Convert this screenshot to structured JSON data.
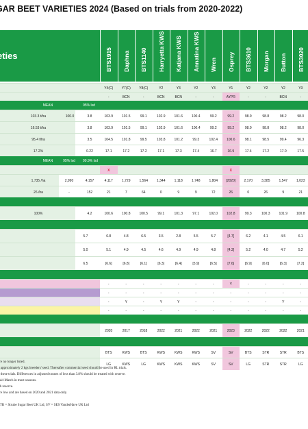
{
  "title": "GAR BEET VARIETIES 2024 (Based on trials from 2020-2022)",
  "subtitle": "eties",
  "varieties": [
    "BTS1915",
    "Daphna",
    "BTS1140",
    "Harryetta KWS",
    "Katjana KWS",
    "Annatina KWS",
    "Wren",
    "Osprey",
    "BTS3610",
    "Morgan",
    "Button",
    "BTS3020"
  ],
  "rows": {
    "status": [
      "Y4(C)",
      "Y7(C)",
      "Y8(C)",
      "Y2",
      "Y3",
      "Y2",
      "Y3",
      "Y1",
      "Y2",
      "Y2",
      "Y2",
      "Y3"
    ],
    "bcn": [
      "-",
      "BCN",
      "-",
      "BCN",
      "BCN",
      "-",
      "-",
      "AYPR",
      "-",
      "-",
      "BCN",
      "-"
    ],
    "mean_header": {
      "mean": "MEAN",
      "lsd": "95% lsd"
    },
    "yield1": {
      "label": "103.3 t/ha",
      "mean": "100.0",
      "lsd": "3.8",
      "values": [
        "103.9",
        "101.5",
        "99.1",
        "102.9",
        "101.6",
        "100.4",
        "99.2",
        "99.2",
        "98.9",
        "98.8",
        "98.2",
        "98.0"
      ]
    },
    "yield2": {
      "label": "16.53 t/ha",
      "lsd": "3.8",
      "values": [
        "103.9",
        "101.5",
        "99.1",
        "102.9",
        "101.6",
        "100.4",
        "99.2",
        "99.2",
        "98.9",
        "98.8",
        "98.2",
        "98.0"
      ]
    },
    "yield3": {
      "label": "95.4 t/ha",
      "lsd": "3.5",
      "values": [
        "104.5",
        "101.8",
        "99.5",
        "103.8",
        "101.2",
        "99.3",
        "102.4",
        "100.6",
        "98.1",
        "98.5",
        "99.4",
        "96.3"
      ]
    },
    "sugar": {
      "label": "17.2%",
      "lsd": "0.22",
      "values": [
        "17.1",
        "17.2",
        "17.2",
        "17.1",
        "17.3",
        "17.4",
        "16.7",
        "16.9",
        "17.4",
        "17.2",
        "17.0",
        "17.5"
      ]
    },
    "mean_header2": {
      "mean": "MEAN",
      "lsd95": "95% lsd",
      "lsd99": "99.9% lsd"
    },
    "bolters_mark": [
      "X",
      "",
      "",
      "",
      "",
      "",
      "",
      "X",
      "",
      "",
      "",
      ""
    ],
    "bolters1": {
      "label": "1,735 /ha",
      "mean": "2,990",
      "lsd": "4,157",
      "values": [
        "4,117",
        "1,729",
        "1,564",
        "1,344",
        "1,118",
        "1,748",
        "1,804",
        "[2020]",
        "2,170",
        "3,385",
        "1,547",
        "1,023"
      ]
    },
    "bolters2": {
      "label": "26 /ha",
      "mean": "-",
      "lsd": "152",
      "values": [
        "21",
        "7",
        "64",
        "0",
        "9",
        "9",
        "72",
        "26",
        "0",
        "26",
        "9",
        "21"
      ]
    },
    "establish": {
      "label": "100%",
      "lsd": "4.2",
      "values": [
        "100.6",
        "100.8",
        "100.5",
        "99.1",
        "101.3",
        "97.1",
        "102.0",
        "102.8",
        "99.3",
        "100.3",
        "101.9",
        "100.8"
      ]
    },
    "disease1": {
      "mean": "5.7",
      "values": [
        "6.8",
        "4.8",
        "6.5",
        "3.5",
        "2.8",
        "5.5",
        "5.7",
        "[4.7]",
        "6.2",
        "4.1",
        "4.5",
        "6.1"
      ]
    },
    "disease2": {
      "mean": "5.0",
      "values": [
        "5.1",
        "4.9",
        "4.5",
        "4.6",
        "4.9",
        "4.9",
        "4.8",
        "[4.3]",
        "5.2",
        "4.0",
        "4.7",
        "5.2"
      ]
    },
    "disease3": {
      "mean": "6.5",
      "values": [
        "[6.6]",
        "[6.8]",
        "[6.1]",
        "[6.3]",
        "[6.4]",
        "[5.9]",
        "[6.5]",
        "[7.6]",
        "[6.9]",
        "[6.0]",
        "[6.3]",
        "[7.2]"
      ]
    },
    "mark1": [
      "-",
      "-",
      "-",
      "-",
      "-",
      "-",
      "-",
      "Y",
      "-",
      "-",
      "-",
      "-"
    ],
    "mark2": [
      "-",
      "-",
      "-",
      "-",
      "-",
      "-",
      "-",
      "-",
      "-",
      "-",
      "-",
      "-"
    ],
    "mark3": [
      "-",
      "Y",
      "-",
      "Y",
      "Y",
      "-",
      "-",
      "-",
      "-",
      "-",
      "Y",
      "-"
    ],
    "mark4": [
      "-",
      "-",
      "-",
      "-",
      "-",
      "-",
      "-",
      "-",
      "-",
      "-",
      "-",
      "-"
    ],
    "year": [
      "2020",
      "2017",
      "2018",
      "2022",
      "2021",
      "2022",
      "2021",
      "2023",
      "2022",
      "2022",
      "2022",
      "2021"
    ],
    "breeder": [
      "BTS",
      "KWS",
      "BTS",
      "KWS",
      "KWS",
      "KWS",
      "SV",
      "SV",
      "BTS",
      "STR",
      "STR",
      "BTS"
    ],
    "agent": [
      "LG",
      "KWS",
      "LG",
      "KWS",
      "KWS",
      "KWS",
      "SV",
      "SV",
      "LG",
      "STR",
      "STR",
      "LG"
    ]
  },
  "footnotes": [
    "are no longer listed.",
    "g approximately 2 kgs breeders' seed. Thereafter commercial seed should be used in RL trials.",
    "n these trials. Differences in adjusted tonnes of less than 3.8% should be treated with reserve.",
    "mid-March in most seasons.",
    "ith reserve.",
    "ere low and are based on 2020 and 2021 data only.",
    "",
    "STR = Strube Sugar Beet UK Ltd, SV = SES VanderHave UK Ltd"
  ]
}
